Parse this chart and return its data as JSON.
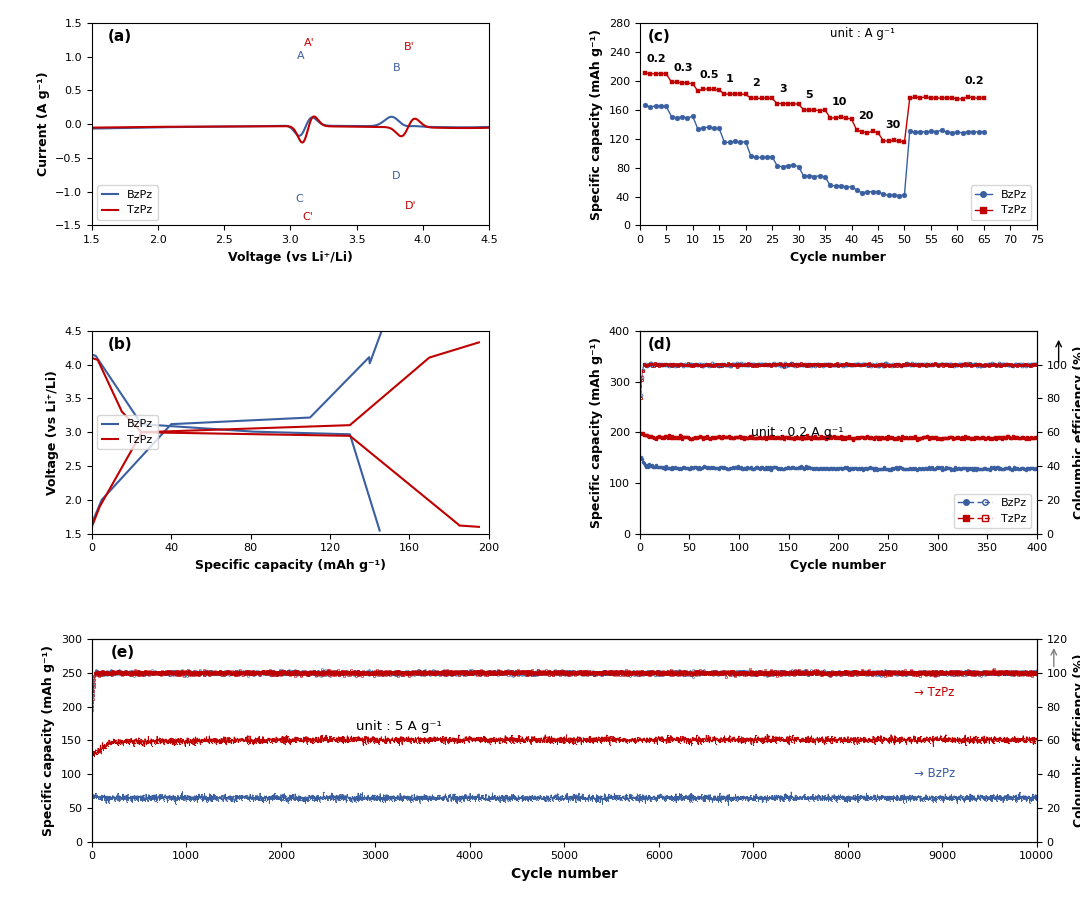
{
  "colors": {
    "blue": "#3A5FA0",
    "red": "#C00000"
  },
  "panel_a": {
    "label": "(a)",
    "xlabel": "Voltage (vs Li⁺/Li)",
    "ylabel": "Current (A g⁻¹)",
    "xlim": [
      1.5,
      4.5
    ],
    "ylim": [
      -1.5,
      1.5
    ],
    "xticks": [
      1.5,
      2.0,
      2.5,
      3.0,
      3.5,
      4.0,
      4.5
    ],
    "yticks": [
      -1.5,
      -1.0,
      -0.5,
      0.0,
      0.5,
      1.0,
      1.5
    ]
  },
  "panel_b": {
    "label": "(b)",
    "xlabel": "Specific capacity (mAh g⁻¹)",
    "ylabel": "Voltage (vs Li⁺/Li)",
    "xlim": [
      0,
      200
    ],
    "ylim": [
      1.5,
      4.5
    ],
    "xticks": [
      0,
      40,
      80,
      120,
      160,
      200
    ],
    "yticks": [
      1.5,
      2.0,
      2.5,
      3.0,
      3.5,
      4.0,
      4.5
    ]
  },
  "panel_c": {
    "label": "(c)",
    "xlabel": "Cycle number",
    "ylabel": "Specific capacity (mAh g⁻¹)",
    "xlim": [
      0,
      75
    ],
    "ylim": [
      0,
      280
    ],
    "xticks": [
      0,
      5,
      10,
      15,
      20,
      25,
      30,
      35,
      40,
      45,
      50,
      55,
      60,
      65,
      70,
      75
    ],
    "yticks": [
      0,
      40,
      80,
      120,
      160,
      200,
      240,
      280
    ],
    "unit_text": "unit : A g⁻¹"
  },
  "panel_d": {
    "label": "(d)",
    "xlabel": "Cycle number",
    "ylabel_left": "Specific capacity (mAh g⁻¹)",
    "ylabel_right": "Coloumbic efficiency (%)",
    "xlim": [
      0,
      400
    ],
    "ylim_left": [
      0,
      400
    ],
    "ylim_right": [
      0,
      120
    ],
    "xticks": [
      0,
      50,
      100,
      150,
      200,
      250,
      300,
      350,
      400
    ],
    "yticks_left": [
      0,
      100,
      200,
      300,
      400
    ],
    "yticks_right": [
      0,
      20,
      40,
      60,
      80,
      100
    ],
    "unit_text": "unit : 0.2 A g⁻¹"
  },
  "panel_e": {
    "label": "(e)",
    "xlabel": "Cycle number",
    "ylabel_left": "Specific capacity (mAh g⁻¹)",
    "ylabel_right": "Coloumbic efficiency (%)",
    "xlim": [
      0,
      10000
    ],
    "ylim_left": [
      0,
      300
    ],
    "ylim_right": [
      0,
      120
    ],
    "xticks": [
      0,
      1000,
      2000,
      3000,
      4000,
      5000,
      6000,
      7000,
      8000,
      9000,
      10000
    ],
    "yticks_left": [
      0,
      50,
      100,
      150,
      200,
      250,
      300
    ],
    "yticks_right": [
      0,
      20,
      40,
      60,
      80,
      100,
      120
    ],
    "unit_text": "unit : 5 A g⁻¹"
  }
}
